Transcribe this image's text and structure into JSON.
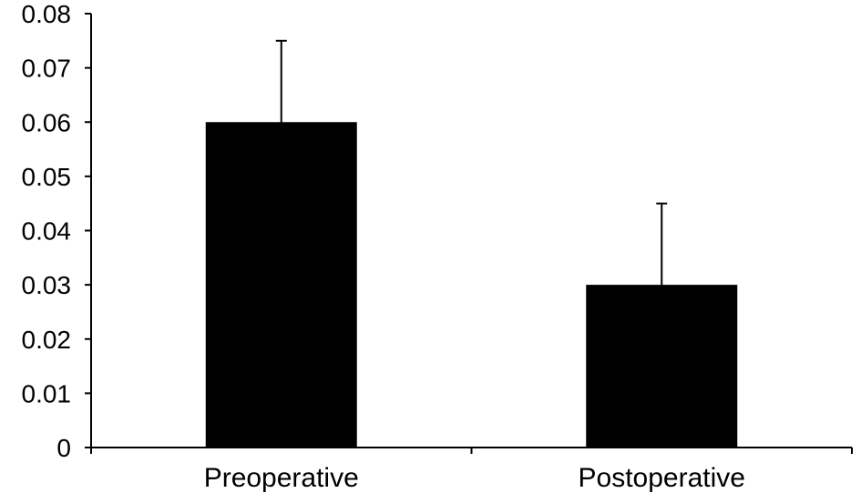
{
  "chart_data": {
    "type": "bar",
    "categories": [
      "Preoperative",
      "Postoperative"
    ],
    "values": [
      0.06,
      0.03
    ],
    "error_low": [
      0.045,
      0.0115
    ],
    "error_high": [
      0.075,
      0.045
    ],
    "title": "",
    "xlabel": "",
    "ylabel": "",
    "ylim": [
      0,
      0.08
    ],
    "yticks": [
      "0",
      "0.01",
      "0.02",
      "0.03",
      "0.04",
      "0.05",
      "0.06",
      "0.07",
      "0.08"
    ],
    "grid": false,
    "bar_color": "#000000"
  }
}
